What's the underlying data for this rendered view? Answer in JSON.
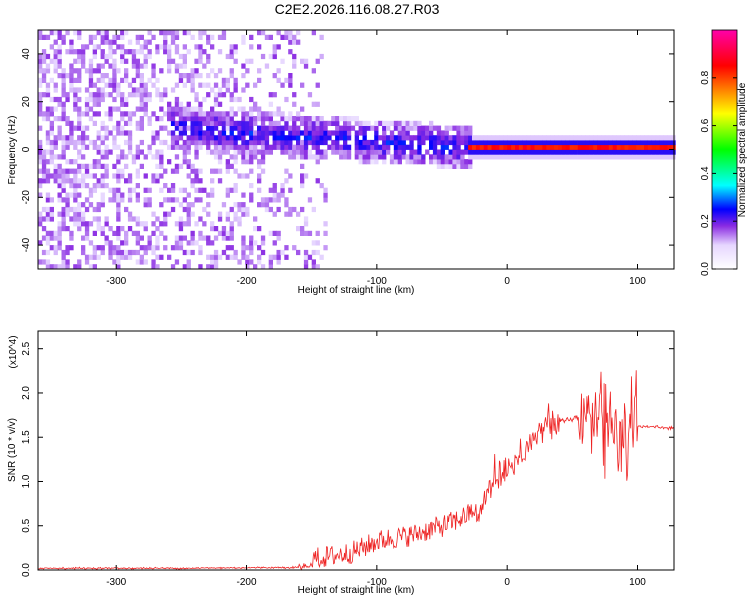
{
  "chart_data": [
    {
      "type": "heatmap",
      "title": "C2E2.2026.116.08.27.R03",
      "xlabel": "Height of straight line (km)",
      "ylabel": "Frequency (Hz)",
      "xlim": [
        -360,
        128
      ],
      "ylim": [
        -50,
        50
      ],
      "xticks": [
        -300,
        -200,
        -100,
        0,
        100
      ],
      "yticks": [
        -40,
        -20,
        0,
        20,
        40
      ],
      "grid": false,
      "colorbar": {
        "label": "Normalized spectral amplitude",
        "range": [
          0.0,
          1.0
        ],
        "ticks": [
          0.0,
          0.2,
          0.4,
          0.6,
          0.8
        ],
        "colormap": [
          "#ffffff",
          "#e6d6ff",
          "#8a2be2",
          "#0000ff",
          "#00ffff",
          "#00ff00",
          "#ffff00",
          "#ff8000",
          "#ff0000",
          "#ff00aa"
        ]
      },
      "features": [
        {
          "description": "scattered noise across all frequencies",
          "x_range": [
            -360,
            -140
          ],
          "amplitude": 0.1
        },
        {
          "description": "broad energy band",
          "x_range": [
            -260,
            -30
          ],
          "frequency_center_start": 8,
          "frequency_center_end": 0,
          "amplitude": 0.25
        },
        {
          "description": "narrow line near 0 Hz",
          "x_range": [
            -30,
            128
          ],
          "frequency": 0,
          "amplitude": 0.9
        }
      ]
    },
    {
      "type": "line",
      "xlabel": "Height of straight line (km)",
      "ylabel": "SNR (10 * v/v)",
      "yscale_label": "(x10^4)",
      "xlim": [
        -360,
        128
      ],
      "ylim": [
        0,
        2.7
      ],
      "xticks": [
        -300,
        -200,
        -100,
        0,
        100
      ],
      "yticks": [
        0.0,
        0.5,
        1.0,
        1.5,
        2.0,
        2.5
      ],
      "grid": false,
      "series": [
        {
          "color": "#ee2222",
          "x": [
            -360,
            -250,
            -160,
            -140,
            -120,
            -110,
            -100,
            -90,
            -80,
            -70,
            -60,
            -50,
            -40,
            -30,
            -25,
            -20,
            -15,
            -10,
            0,
            10,
            20,
            30,
            40,
            50,
            55,
            60,
            65,
            70,
            75,
            80,
            85,
            90,
            95,
            100,
            110,
            128
          ],
          "y": [
            0.02,
            0.02,
            0.03,
            0.07,
            0.12,
            0.18,
            0.25,
            0.28,
            0.3,
            0.33,
            0.38,
            0.42,
            0.48,
            0.55,
            0.62,
            0.7,
            0.9,
            1.05,
            1.15,
            1.3,
            1.5,
            1.62,
            1.68,
            1.7,
            1.72,
            1.75,
            1.8,
            1.75,
            1.7,
            1.65,
            1.62,
            1.6,
            1.62,
            1.62,
            1.62,
            1.6
          ]
        }
      ],
      "noise_amplitude": [
        {
          "x_range": [
            -360,
            -160
          ],
          "amplitude": 0.01
        },
        {
          "x_range": [
            -150,
            -25
          ],
          "amplitude": 0.25
        },
        {
          "x_range": [
            -25,
            40
          ],
          "amplitude": 0.2
        },
        {
          "x_range": [
            55,
            100
          ],
          "amplitude": 0.7
        },
        {
          "x_range": [
            100,
            128
          ],
          "amplitude": 0.015
        }
      ]
    }
  ]
}
